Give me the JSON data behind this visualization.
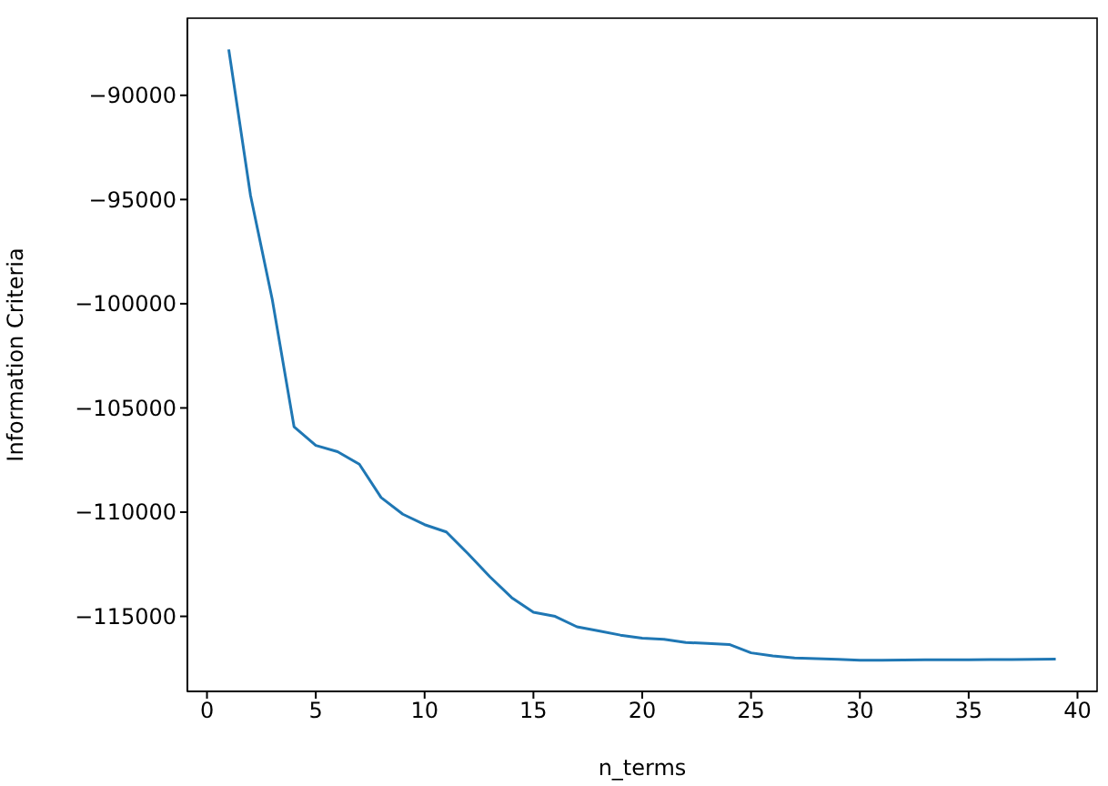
{
  "chart_data": {
    "type": "line",
    "xlabel": "n_terms",
    "ylabel": "Information Criteria",
    "x": [
      1,
      2,
      3,
      4,
      5,
      6,
      7,
      8,
      9,
      10,
      11,
      12,
      13,
      14,
      15,
      16,
      17,
      18,
      19,
      20,
      21,
      22,
      23,
      24,
      25,
      26,
      27,
      28,
      29,
      30,
      31,
      32,
      33,
      34,
      35,
      36,
      37,
      38,
      39
    ],
    "series": [
      {
        "color": "#1f77b4",
        "values": [
          -87800,
          -94800,
          -99800,
          -105900,
          -106800,
          -107100,
          -107700,
          -109300,
          -110100,
          -110600,
          -110950,
          -112000,
          -113100,
          -114100,
          -114800,
          -115000,
          -115500,
          -115700,
          -115900,
          -116050,
          -116100,
          -116250,
          -116300,
          -116350,
          -116750,
          -116900,
          -117000,
          -117030,
          -117060,
          -117100,
          -117100,
          -117090,
          -117080,
          -117080,
          -117080,
          -117070,
          -117070,
          -117060,
          -117050
        ]
      }
    ],
    "xlim": [
      -0.9,
      40.9
    ],
    "ylim": [
      -118600,
      -86300
    ],
    "xticks": [
      0,
      5,
      10,
      15,
      20,
      25,
      30,
      35,
      40
    ],
    "yticks": [
      -90000,
      -95000,
      -100000,
      -105000,
      -110000,
      -115000
    ],
    "grid": false,
    "legend": false,
    "marker": "none",
    "line_style": "solid"
  }
}
